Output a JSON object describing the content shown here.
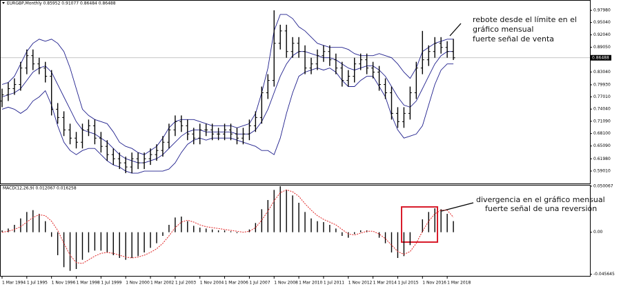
{
  "chart_data": [
    {
      "type": "ohlc",
      "title": "EURGBP,Monthly  0.85952 0.91077 0.86484 0.86488",
      "categories": [
        "1 Mar 1994",
        null,
        null,
        null,
        "1 Jul 1995",
        null,
        null,
        null,
        "1 Nov 1996",
        null,
        null,
        null,
        "1 Mar 1998",
        null,
        null,
        null,
        "1 Jul 1999",
        null,
        null,
        null,
        "1 Nov 2000",
        null,
        null,
        null,
        "1 Mar 2002",
        null,
        null,
        null,
        "1 Jul 2003",
        null,
        null,
        null,
        "1 Nov 2004",
        null,
        null,
        null,
        "1 Mar 2006",
        null,
        null,
        null,
        "1 Jul 2007",
        null,
        null,
        null,
        "1 Nov 2008",
        null,
        null,
        null,
        "1 Mar 2010",
        null,
        null,
        null,
        "1 Jul 2011",
        null,
        null,
        null,
        "1 Nov 2012",
        null,
        null,
        null,
        "1 Mar 2014",
        null,
        null,
        null,
        "1 Jul 2015",
        null,
        null,
        null,
        "1 Nov 2016",
        null,
        null,
        null,
        "1 Mar 2018",
        null
      ],
      "open": [
        0.76,
        0.775,
        0.79,
        0.8,
        0.84,
        0.87,
        0.85,
        0.84,
        0.82,
        0.74,
        0.72,
        0.69,
        0.67,
        0.66,
        0.69,
        0.7,
        0.67,
        0.65,
        0.63,
        0.62,
        0.61,
        0.6,
        0.62,
        0.61,
        0.62,
        0.63,
        0.64,
        0.66,
        0.69,
        0.71,
        0.7,
        0.68,
        0.67,
        0.69,
        0.69,
        0.68,
        0.68,
        0.69,
        0.68,
        0.67,
        0.68,
        0.7,
        0.72,
        0.78,
        0.81,
        0.9,
        0.93,
        0.88,
        0.9,
        0.88,
        0.84,
        0.85,
        0.87,
        0.88,
        0.86,
        0.84,
        0.81,
        0.82,
        0.85,
        0.86,
        0.84,
        0.83,
        0.8,
        0.78,
        0.73,
        0.71,
        0.73,
        0.78,
        0.84,
        0.86,
        0.88,
        0.9,
        0.89,
        0.88
      ],
      "high": [
        0.79,
        0.805,
        0.815,
        0.855,
        0.885,
        0.885,
        0.865,
        0.855,
        0.835,
        0.755,
        0.735,
        0.705,
        0.685,
        0.705,
        0.715,
        0.715,
        0.685,
        0.665,
        0.645,
        0.635,
        0.625,
        0.635,
        0.635,
        0.635,
        0.645,
        0.655,
        0.675,
        0.705,
        0.725,
        0.725,
        0.715,
        0.695,
        0.705,
        0.705,
        0.705,
        0.695,
        0.705,
        0.705,
        0.695,
        0.695,
        0.715,
        0.735,
        0.795,
        0.825,
        0.98,
        0.945,
        0.945,
        0.915,
        0.915,
        0.895,
        0.865,
        0.885,
        0.895,
        0.895,
        0.875,
        0.855,
        0.835,
        0.865,
        0.875,
        0.875,
        0.855,
        0.845,
        0.815,
        0.795,
        0.745,
        0.745,
        0.795,
        0.855,
        0.93,
        0.895,
        0.915,
        0.915,
        0.905,
        0.91077
      ],
      "low": [
        0.745,
        0.76,
        0.775,
        0.785,
        0.825,
        0.835,
        0.825,
        0.805,
        0.725,
        0.705,
        0.675,
        0.655,
        0.645,
        0.645,
        0.675,
        0.655,
        0.635,
        0.615,
        0.605,
        0.595,
        0.585,
        0.585,
        0.595,
        0.595,
        0.605,
        0.615,
        0.625,
        0.645,
        0.675,
        0.685,
        0.665,
        0.655,
        0.655,
        0.675,
        0.665,
        0.665,
        0.665,
        0.665,
        0.655,
        0.655,
        0.665,
        0.685,
        0.705,
        0.765,
        0.795,
        0.885,
        0.865,
        0.865,
        0.865,
        0.825,
        0.825,
        0.835,
        0.855,
        0.845,
        0.825,
        0.795,
        0.795,
        0.805,
        0.835,
        0.825,
        0.815,
        0.785,
        0.765,
        0.715,
        0.695,
        0.695,
        0.715,
        0.765,
        0.825,
        0.845,
        0.865,
        0.875,
        0.865,
        0.85952
      ],
      "close": [
        0.775,
        0.79,
        0.8,
        0.84,
        0.87,
        0.85,
        0.84,
        0.82,
        0.74,
        0.72,
        0.69,
        0.67,
        0.66,
        0.69,
        0.7,
        0.67,
        0.65,
        0.63,
        0.62,
        0.61,
        0.6,
        0.62,
        0.61,
        0.62,
        0.63,
        0.64,
        0.66,
        0.69,
        0.71,
        0.7,
        0.68,
        0.67,
        0.69,
        0.69,
        0.68,
        0.68,
        0.69,
        0.68,
        0.67,
        0.68,
        0.7,
        0.72,
        0.78,
        0.81,
        0.9,
        0.93,
        0.88,
        0.9,
        0.88,
        0.84,
        0.85,
        0.87,
        0.88,
        0.86,
        0.84,
        0.81,
        0.82,
        0.85,
        0.86,
        0.84,
        0.83,
        0.8,
        0.78,
        0.73,
        0.71,
        0.73,
        0.78,
        0.84,
        0.86,
        0.88,
        0.9,
        0.89,
        0.88,
        0.86488
      ],
      "color": "#000000",
      "bands": {
        "color": "#1e1e8c",
        "upper": [
          0.8,
          0.805,
          0.82,
          0.85,
          0.88,
          0.9,
          0.91,
          0.905,
          0.91,
          0.9,
          0.88,
          0.84,
          0.79,
          0.74,
          0.725,
          0.715,
          0.71,
          0.705,
          0.685,
          0.66,
          0.65,
          0.645,
          0.635,
          0.63,
          0.64,
          0.65,
          0.67,
          0.695,
          0.71,
          0.715,
          0.715,
          0.715,
          0.71,
          0.705,
          0.7,
          0.7,
          0.7,
          0.7,
          0.695,
          0.7,
          0.705,
          0.73,
          0.78,
          0.84,
          0.93,
          0.97,
          0.97,
          0.96,
          0.94,
          0.93,
          0.915,
          0.9,
          0.895,
          0.89,
          0.89,
          0.89,
          0.885,
          0.875,
          0.87,
          0.87,
          0.87,
          0.875,
          0.87,
          0.865,
          0.85,
          0.83,
          0.815,
          0.84,
          0.88,
          0.89,
          0.9,
          0.905,
          0.91,
          0.91
        ],
        "middle": [
          0.77,
          0.775,
          0.78,
          0.79,
          0.81,
          0.83,
          0.84,
          0.845,
          0.83,
          0.8,
          0.77,
          0.74,
          0.71,
          0.69,
          0.685,
          0.68,
          0.67,
          0.66,
          0.645,
          0.63,
          0.62,
          0.615,
          0.61,
          0.61,
          0.615,
          0.62,
          0.63,
          0.645,
          0.66,
          0.675,
          0.685,
          0.69,
          0.69,
          0.685,
          0.685,
          0.685,
          0.685,
          0.685,
          0.68,
          0.68,
          0.68,
          0.69,
          0.71,
          0.74,
          0.78,
          0.82,
          0.85,
          0.87,
          0.88,
          0.88,
          0.875,
          0.87,
          0.865,
          0.865,
          0.86,
          0.85,
          0.84,
          0.835,
          0.84,
          0.845,
          0.845,
          0.835,
          0.82,
          0.795,
          0.77,
          0.75,
          0.745,
          0.76,
          0.79,
          0.82,
          0.85,
          0.87,
          0.88,
          0.88
        ],
        "lower": [
          0.74,
          0.745,
          0.74,
          0.73,
          0.74,
          0.76,
          0.77,
          0.785,
          0.75,
          0.7,
          0.66,
          0.64,
          0.63,
          0.64,
          0.645,
          0.645,
          0.63,
          0.615,
          0.605,
          0.6,
          0.59,
          0.585,
          0.585,
          0.59,
          0.59,
          0.59,
          0.59,
          0.595,
          0.61,
          0.635,
          0.655,
          0.665,
          0.67,
          0.665,
          0.67,
          0.67,
          0.67,
          0.67,
          0.665,
          0.66,
          0.655,
          0.65,
          0.64,
          0.64,
          0.63,
          0.67,
          0.73,
          0.78,
          0.82,
          0.83,
          0.835,
          0.84,
          0.835,
          0.84,
          0.83,
          0.81,
          0.795,
          0.795,
          0.81,
          0.82,
          0.82,
          0.795,
          0.77,
          0.725,
          0.69,
          0.67,
          0.675,
          0.68,
          0.7,
          0.75,
          0.8,
          0.835,
          0.85,
          0.85
        ]
      },
      "current_price": {
        "value": 0.86488,
        "label": "0.86488"
      },
      "ylim": [
        0.56,
        1.005
      ],
      "yticks": [
        {
          "value": 0.9798,
          "label": "0.97980"
        },
        {
          "value": 0.9504,
          "label": "0.95040"
        },
        {
          "value": 0.9204,
          "label": "0.92040"
        },
        {
          "value": 0.8905,
          "label": "0.89050"
        },
        {
          "value": 0.8304,
          "label": "0.83040"
        },
        {
          "value": 0.7993,
          "label": "0.79930"
        },
        {
          "value": 0.7701,
          "label": "0.77010"
        },
        {
          "value": 0.7404,
          "label": "0.74040"
        },
        {
          "value": 0.7109,
          "label": "0.71090"
        },
        {
          "value": 0.681,
          "label": "0.68100"
        },
        {
          "value": 0.6509,
          "label": "0.65090"
        },
        {
          "value": 0.6198,
          "label": "0.61980"
        },
        {
          "value": 0.5901,
          "label": "0.59010"
        }
      ],
      "annotation": [
        "rebote desde el límite en el",
        "gráfico mensual",
        "fuerte señal de venta"
      ]
    },
    {
      "type": "macd",
      "title": "MACD(12,26,9) 0.012067 0.016258",
      "histogram": {
        "color": "#000000",
        "values": [
          0.002,
          0.004,
          0.008,
          0.015,
          0.022,
          0.024,
          0.02,
          0.012,
          -0.005,
          -0.025,
          -0.038,
          -0.042,
          -0.04,
          -0.03,
          -0.022,
          -0.02,
          -0.02,
          -0.022,
          -0.025,
          -0.028,
          -0.03,
          -0.028,
          -0.026,
          -0.022,
          -0.017,
          -0.012,
          -0.004,
          0.008,
          0.016,
          0.017,
          0.012,
          0.007,
          0.005,
          0.004,
          0.003,
          0.002,
          0.002,
          0.001,
          -0.001,
          0,
          0.003,
          0.01,
          0.025,
          0.035,
          0.046,
          0.05,
          0.046,
          0.04,
          0.032,
          0.022,
          0.015,
          0.012,
          0.011,
          0.008,
          0.004,
          -0.004,
          -0.006,
          -0.002,
          0.002,
          0.002,
          0,
          -0.006,
          -0.012,
          -0.022,
          -0.028,
          -0.026,
          -0.014,
          0,
          0.014,
          0.022,
          0.026,
          0.025,
          0.02,
          0.012067
        ]
      },
      "signal": {
        "color": "#e02020",
        "values": [
          0,
          0.001,
          0.003,
          0.006,
          0.011,
          0.016,
          0.019,
          0.018,
          0.012,
          0.002,
          -0.012,
          -0.025,
          -0.033,
          -0.034,
          -0.03,
          -0.026,
          -0.023,
          -0.022,
          -0.023,
          -0.025,
          -0.027,
          -0.028,
          -0.027,
          -0.025,
          -0.022,
          -0.018,
          -0.012,
          -0.004,
          0.005,
          0.011,
          0.013,
          0.011,
          0.008,
          0.006,
          0.005,
          0.004,
          0.003,
          0.002,
          0.001,
          0,
          0.001,
          0.005,
          0.013,
          0.023,
          0.034,
          0.043,
          0.046,
          0.044,
          0.039,
          0.031,
          0.024,
          0.018,
          0.014,
          0.011,
          0.008,
          0.003,
          -0.002,
          -0.003,
          -0.001,
          0.001,
          0.001,
          -0.002,
          -0.007,
          -0.014,
          -0.021,
          -0.024,
          -0.021,
          -0.012,
          0.001,
          0.012,
          0.02,
          0.024,
          0.024,
          0.016258
        ]
      },
      "ylim": [
        -0.0475,
        0.0515
      ],
      "yticks": [
        0.050067,
        {
          "value": 0,
          "label": "0.00"
        },
        -0.045645
      ],
      "annotation": [
        "divergencia en el gráfico mensual",
        "fuerte señal de una reversión"
      ]
    }
  ]
}
